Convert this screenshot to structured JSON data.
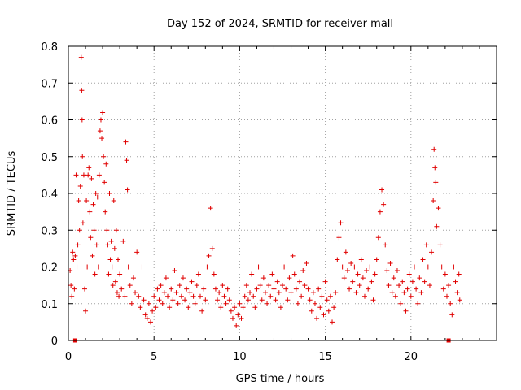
{
  "chart_data": {
    "type": "scatter",
    "title": "Day 152 of 2024, SRMTID for receiver mall",
    "xlabel": "GPS time / hours",
    "ylabel": "SRMTID / TECUs",
    "xlim": [
      0,
      25
    ],
    "ylim": [
      0,
      0.8
    ],
    "x_ticks": [
      0,
      5,
      10,
      15,
      20
    ],
    "x_tick_labels": [
      "0",
      "5",
      "10",
      "15",
      "20"
    ],
    "y_ticks": [
      0,
      0.1,
      0.2,
      0.3,
      0.4,
      0.5,
      0.6,
      0.7,
      0.8
    ],
    "y_tick_labels": [
      "0",
      "0.1",
      "0.2",
      "0.3",
      "0.4",
      "0.5",
      "0.6",
      "0.7",
      "0.8"
    ],
    "grid": true,
    "marker": "plus",
    "colors": {
      "series": "#e00000",
      "axis": "#000000",
      "grid": "#a0a0a0"
    },
    "series": [
      {
        "name": "SRMTID",
        "points": [
          [
            0.1,
            0.19
          ],
          [
            0.15,
            0.15
          ],
          [
            0.2,
            0.12
          ],
          [
            0.25,
            0.24
          ],
          [
            0.3,
            0.22
          ],
          [
            0.35,
            0.14
          ],
          [
            0.4,
            0.23
          ],
          [
            0.45,
            0.45
          ],
          [
            0.5,
            0.2
          ],
          [
            0.55,
            0.26
          ],
          [
            0.6,
            0.38
          ],
          [
            0.65,
            0.3
          ],
          [
            0.7,
            0.42
          ],
          [
            0.75,
            0.77
          ],
          [
            0.78,
            0.68
          ],
          [
            0.8,
            0.6
          ],
          [
            0.82,
            0.5
          ],
          [
            0.85,
            0.32
          ],
          [
            0.9,
            0.45
          ],
          [
            0.95,
            0.14
          ],
          [
            1.0,
            0.08
          ],
          [
            1.05,
            0.38
          ],
          [
            1.1,
            0.2
          ],
          [
            1.15,
            0.45
          ],
          [
            1.2,
            0.47
          ],
          [
            1.25,
            0.35
          ],
          [
            1.3,
            0.28
          ],
          [
            1.35,
            0.44
          ],
          [
            1.4,
            0.23
          ],
          [
            1.45,
            0.37
          ],
          [
            1.5,
            0.3
          ],
          [
            1.55,
            0.18
          ],
          [
            1.6,
            0.4
          ],
          [
            1.65,
            0.26
          ],
          [
            1.7,
            0.39
          ],
          [
            1.75,
            0.2
          ],
          [
            1.8,
            0.45
          ],
          [
            1.85,
            0.57
          ],
          [
            1.9,
            0.6
          ],
          [
            1.95,
            0.55
          ],
          [
            2.0,
            0.62
          ],
          [
            2.05,
            0.5
          ],
          [
            2.1,
            0.43
          ],
          [
            2.15,
            0.35
          ],
          [
            2.2,
            0.48
          ],
          [
            2.25,
            0.3
          ],
          [
            2.3,
            0.26
          ],
          [
            2.35,
            0.18
          ],
          [
            2.4,
            0.4
          ],
          [
            2.45,
            0.22
          ],
          [
            2.5,
            0.27
          ],
          [
            2.55,
            0.2
          ],
          [
            2.6,
            0.15
          ],
          [
            2.65,
            0.38
          ],
          [
            2.7,
            0.25
          ],
          [
            2.75,
            0.16
          ],
          [
            2.8,
            0.3
          ],
          [
            2.85,
            0.13
          ],
          [
            2.9,
            0.22
          ],
          [
            2.95,
            0.12
          ],
          [
            3.0,
            0.18
          ],
          [
            3.1,
            0.14
          ],
          [
            3.2,
            0.27
          ],
          [
            3.3,
            0.12
          ],
          [
            3.35,
            0.54
          ],
          [
            3.4,
            0.49
          ],
          [
            3.45,
            0.41
          ],
          [
            3.5,
            0.2
          ],
          [
            3.6,
            0.15
          ],
          [
            3.7,
            0.1
          ],
          [
            3.8,
            0.17
          ],
          [
            3.9,
            0.13
          ],
          [
            4.0,
            0.24
          ],
          [
            4.1,
            0.12
          ],
          [
            4.2,
            0.09
          ],
          [
            4.3,
            0.2
          ],
          [
            4.4,
            0.11
          ],
          [
            4.5,
            0.07
          ],
          [
            4.6,
            0.06
          ],
          [
            4.7,
            0.1
          ],
          [
            4.8,
            0.05
          ],
          [
            4.9,
            0.08
          ],
          [
            5.0,
            0.12
          ],
          [
            5.1,
            0.09
          ],
          [
            5.2,
            0.14
          ],
          [
            5.3,
            0.11
          ],
          [
            5.4,
            0.15
          ],
          [
            5.5,
            0.1
          ],
          [
            5.6,
            0.13
          ],
          [
            5.7,
            0.17
          ],
          [
            5.8,
            0.12
          ],
          [
            5.9,
            0.09
          ],
          [
            6.0,
            0.14
          ],
          [
            6.1,
            0.11
          ],
          [
            6.2,
            0.19
          ],
          [
            6.3,
            0.13
          ],
          [
            6.4,
            0.1
          ],
          [
            6.5,
            0.15
          ],
          [
            6.6,
            0.12
          ],
          [
            6.7,
            0.17
          ],
          [
            6.8,
            0.11
          ],
          [
            6.9,
            0.14
          ],
          [
            7.0,
            0.09
          ],
          [
            7.1,
            0.13
          ],
          [
            7.2,
            0.16
          ],
          [
            7.3,
            0.12
          ],
          [
            7.4,
            0.1
          ],
          [
            7.5,
            0.15
          ],
          [
            7.6,
            0.18
          ],
          [
            7.7,
            0.12
          ],
          [
            7.8,
            0.08
          ],
          [
            7.9,
            0.14
          ],
          [
            8.0,
            0.11
          ],
          [
            8.1,
            0.2
          ],
          [
            8.2,
            0.23
          ],
          [
            8.3,
            0.36
          ],
          [
            8.4,
            0.25
          ],
          [
            8.5,
            0.18
          ],
          [
            8.6,
            0.14
          ],
          [
            8.7,
            0.11
          ],
          [
            8.8,
            0.13
          ],
          [
            8.9,
            0.09
          ],
          [
            9.0,
            0.15
          ],
          [
            9.1,
            0.12
          ],
          [
            9.2,
            0.1
          ],
          [
            9.3,
            0.14
          ],
          [
            9.4,
            0.11
          ],
          [
            9.5,
            0.08
          ],
          [
            9.6,
            0.06
          ],
          [
            9.7,
            0.09
          ],
          [
            9.8,
            0.04
          ],
          [
            9.9,
            0.07
          ],
          [
            10.0,
            0.1
          ],
          [
            10.1,
            0.06
          ],
          [
            10.2,
            0.09
          ],
          [
            10.3,
            0.12
          ],
          [
            10.4,
            0.15
          ],
          [
            10.5,
            0.11
          ],
          [
            10.6,
            0.13
          ],
          [
            10.7,
            0.18
          ],
          [
            10.8,
            0.12
          ],
          [
            10.9,
            0.09
          ],
          [
            11.0,
            0.14
          ],
          [
            11.1,
            0.2
          ],
          [
            11.2,
            0.15
          ],
          [
            11.3,
            0.11
          ],
          [
            11.4,
            0.17
          ],
          [
            11.5,
            0.13
          ],
          [
            11.6,
            0.1
          ],
          [
            11.7,
            0.15
          ],
          [
            11.8,
            0.12
          ],
          [
            11.9,
            0.18
          ],
          [
            12.0,
            0.14
          ],
          [
            12.1,
            0.11
          ],
          [
            12.2,
            0.16
          ],
          [
            12.3,
            0.13
          ],
          [
            12.4,
            0.09
          ],
          [
            12.5,
            0.15
          ],
          [
            12.6,
            0.2
          ],
          [
            12.7,
            0.14
          ],
          [
            12.8,
            0.11
          ],
          [
            12.9,
            0.17
          ],
          [
            13.0,
            0.13
          ],
          [
            13.1,
            0.23
          ],
          [
            13.2,
            0.18
          ],
          [
            13.3,
            0.14
          ],
          [
            13.4,
            0.1
          ],
          [
            13.5,
            0.16
          ],
          [
            13.6,
            0.12
          ],
          [
            13.7,
            0.19
          ],
          [
            13.8,
            0.15
          ],
          [
            13.9,
            0.21
          ],
          [
            14.0,
            0.14
          ],
          [
            14.1,
            0.11
          ],
          [
            14.2,
            0.08
          ],
          [
            14.3,
            0.13
          ],
          [
            14.4,
            0.1
          ],
          [
            14.5,
            0.06
          ],
          [
            14.6,
            0.14
          ],
          [
            14.7,
            0.09
          ],
          [
            14.8,
            0.12
          ],
          [
            14.9,
            0.07
          ],
          [
            15.0,
            0.16
          ],
          [
            15.1,
            0.11
          ],
          [
            15.2,
            0.08
          ],
          [
            15.3,
            0.12
          ],
          [
            15.4,
            0.05
          ],
          [
            15.5,
            0.09
          ],
          [
            15.6,
            0.13
          ],
          [
            15.7,
            0.22
          ],
          [
            15.8,
            0.28
          ],
          [
            15.9,
            0.32
          ],
          [
            16.0,
            0.2
          ],
          [
            16.1,
            0.17
          ],
          [
            16.2,
            0.24
          ],
          [
            16.3,
            0.19
          ],
          [
            16.4,
            0.14
          ],
          [
            16.5,
            0.21
          ],
          [
            16.6,
            0.16
          ],
          [
            16.7,
            0.2
          ],
          [
            16.8,
            0.13
          ],
          [
            16.9,
            0.18
          ],
          [
            17.0,
            0.15
          ],
          [
            17.1,
            0.22
          ],
          [
            17.2,
            0.17
          ],
          [
            17.3,
            0.12
          ],
          [
            17.4,
            0.19
          ],
          [
            17.5,
            0.14
          ],
          [
            17.6,
            0.2
          ],
          [
            17.7,
            0.16
          ],
          [
            17.8,
            0.11
          ],
          [
            17.9,
            0.18
          ],
          [
            18.0,
            0.22
          ],
          [
            18.1,
            0.28
          ],
          [
            18.2,
            0.35
          ],
          [
            18.3,
            0.41
          ],
          [
            18.4,
            0.37
          ],
          [
            18.5,
            0.26
          ],
          [
            18.6,
            0.19
          ],
          [
            18.7,
            0.15
          ],
          [
            18.8,
            0.21
          ],
          [
            18.9,
            0.13
          ],
          [
            19.0,
            0.17
          ],
          [
            19.1,
            0.12
          ],
          [
            19.2,
            0.19
          ],
          [
            19.3,
            0.15
          ],
          [
            19.4,
            0.1
          ],
          [
            19.5,
            0.16
          ],
          [
            19.6,
            0.13
          ],
          [
            19.7,
            0.08
          ],
          [
            19.8,
            0.14
          ],
          [
            19.9,
            0.18
          ],
          [
            20.0,
            0.12
          ],
          [
            20.1,
            0.16
          ],
          [
            20.2,
            0.2
          ],
          [
            20.3,
            0.14
          ],
          [
            20.4,
            0.1
          ],
          [
            20.5,
            0.17
          ],
          [
            20.6,
            0.13
          ],
          [
            20.7,
            0.22
          ],
          [
            20.8,
            0.16
          ],
          [
            20.9,
            0.26
          ],
          [
            21.0,
            0.2
          ],
          [
            21.1,
            0.15
          ],
          [
            21.2,
            0.24
          ],
          [
            21.3,
            0.38
          ],
          [
            21.35,
            0.52
          ],
          [
            21.4,
            0.47
          ],
          [
            21.45,
            0.43
          ],
          [
            21.5,
            0.31
          ],
          [
            21.6,
            0.36
          ],
          [
            21.7,
            0.26
          ],
          [
            21.8,
            0.2
          ],
          [
            21.9,
            0.14
          ],
          [
            22.0,
            0.18
          ],
          [
            22.1,
            0.12
          ],
          [
            22.2,
            0.15
          ],
          [
            22.3,
            0.1
          ],
          [
            22.4,
            0.07
          ],
          [
            22.5,
            0.2
          ],
          [
            22.6,
            0.16
          ],
          [
            22.7,
            0.13
          ],
          [
            22.8,
            0.18
          ],
          [
            22.85,
            0.11
          ]
        ]
      }
    ],
    "axis_markers": [
      0.4,
      22.2
    ]
  }
}
